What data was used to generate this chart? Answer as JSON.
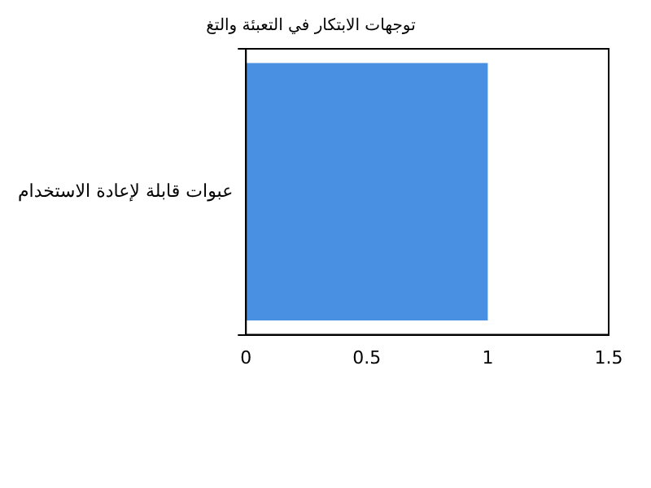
{
  "chart_data": {
    "type": "bar",
    "orientation": "horizontal",
    "title": "توجهات الابتكار في التعبئة والتغ",
    "categories": [
      "عبوات قابلة لإعادة الاستخدام"
    ],
    "values": [
      1
    ],
    "color": "#4a90e2",
    "xlim": [
      0,
      1.5
    ],
    "xticks": [
      0,
      0.5,
      1,
      1.5
    ],
    "grid": false,
    "legend": false
  }
}
